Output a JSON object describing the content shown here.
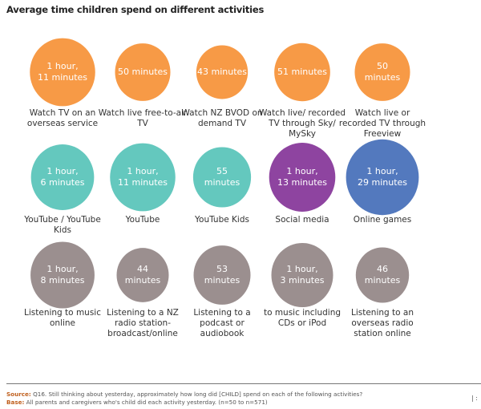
{
  "chart_data": {
    "type": "bubble",
    "title": "Average time children spend on different activities",
    "colors": {
      "tv": "#F79A46",
      "youtube": "#64C8BE",
      "social": "#8E44A0",
      "games": "#5379BE",
      "audio": "#9B8F8F"
    },
    "items": [
      {
        "label": "Watch TV on an overseas service",
        "value_text": "1 hour, 11 minutes",
        "minutes": 71,
        "group": "tv"
      },
      {
        "label": "Watch live free-to-air TV",
        "value_text": "50 minutes",
        "minutes": 50,
        "group": "tv"
      },
      {
        "label": "Watch NZ BVOD on demand TV",
        "value_text": "43 minutes",
        "minutes": 43,
        "group": "tv"
      },
      {
        "label": "Watch live/ recorded TV through Sky/ MySky",
        "value_text": "51 minutes",
        "minutes": 51,
        "group": "tv"
      },
      {
        "label": "Watch live or recorded TV through Freeview",
        "value_text": "50 minutes",
        "minutes": 50,
        "group": "tv"
      },
      {
        "label": "YouTube / YouTube Kids",
        "value_text": "1 hour, 6 minutes",
        "minutes": 66,
        "group": "youtube"
      },
      {
        "label": "YouTube",
        "value_text": "1 hour, 11 minutes",
        "minutes": 71,
        "group": "youtube"
      },
      {
        "label": "YouTube Kids",
        "value_text": "55 minutes",
        "minutes": 55,
        "group": "youtube"
      },
      {
        "label": "Social media",
        "value_text": "1 hour, 13 minutes",
        "minutes": 73,
        "group": "social"
      },
      {
        "label": "Online games",
        "value_text": "1 hour, 29 minutes",
        "minutes": 89,
        "group": "games"
      },
      {
        "label": "Listening to music online",
        "value_text": "1 hour, 8 minutes",
        "minutes": 68,
        "group": "audio"
      },
      {
        "label": "Listening to a NZ radio station-broadcast/online",
        "value_text": "44 minutes",
        "minutes": 44,
        "group": "audio"
      },
      {
        "label": "Listening to a podcast or audiobook",
        "value_text": "53 minutes",
        "minutes": 53,
        "group": "audio"
      },
      {
        "label": "to music including CDs or iPod",
        "value_text": "1 hour, 3 minutes",
        "minutes": 63,
        "group": "audio"
      },
      {
        "label": "Listening to an overseas radio station online",
        "value_text": "46 minutes",
        "minutes": 46,
        "group": "audio"
      }
    ]
  },
  "footer": {
    "source_label": "Source:",
    "source_text": "Q16. Still thinking about yesterday, approximately how long did [CHILD] spend on each of the following activities?",
    "base_label": "Base:",
    "base_text": "All parents and caregivers who's child did each activity yesterday. (n=50 to n=571)",
    "page": "|  :"
  }
}
